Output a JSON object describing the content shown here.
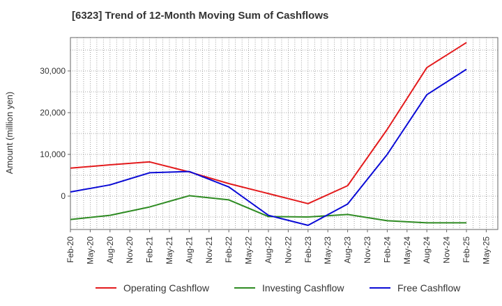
{
  "chart_data": {
    "type": "line",
    "title": "[6323]  Trend of 12-Month Moving Sum of Cashflows",
    "xlabel": "",
    "ylabel": "Amount (million yen)",
    "x_tick_labels": [
      "Feb-20",
      "May-20",
      "Aug-20",
      "Nov-20",
      "Feb-21",
      "May-21",
      "Aug-21",
      "Nov-21",
      "Feb-22",
      "May-22",
      "Aug-22",
      "Nov-22",
      "Feb-23",
      "May-23",
      "Aug-23",
      "Nov-23",
      "Feb-24",
      "May-24",
      "Aug-24",
      "Nov-24",
      "Feb-25",
      "May-25"
    ],
    "y_ticks": [
      0,
      10000,
      20000,
      30000
    ],
    "y_tick_labels": [
      "0",
      "10,000",
      "20,000",
      "30,000"
    ],
    "ylim": [
      -8000,
      38000
    ],
    "grid": true,
    "legend_position": "bottom",
    "x": [
      "Feb-20",
      "Aug-20",
      "Feb-21",
      "Aug-21",
      "Feb-22",
      "Aug-22",
      "Feb-23",
      "Aug-23",
      "Feb-24",
      "Aug-24",
      "Feb-25"
    ],
    "series": [
      {
        "name": "Operating Cashflow",
        "color": "#e31a1c",
        "values": [
          6700,
          7500,
          8200,
          5800,
          3000,
          600,
          -1800,
          2500,
          16000,
          30800,
          36800
        ]
      },
      {
        "name": "Investing Cashflow",
        "color": "#2e8b22",
        "values": [
          -5600,
          -4600,
          -2600,
          100,
          -900,
          -4900,
          -5000,
          -4400,
          -5900,
          -6400,
          -6400
        ]
      },
      {
        "name": "Free Cashflow",
        "color": "#0a0ad6",
        "values": [
          1000,
          2700,
          5600,
          5900,
          2200,
          -4600,
          -7000,
          -1900,
          10000,
          24300,
          30400
        ]
      }
    ]
  }
}
